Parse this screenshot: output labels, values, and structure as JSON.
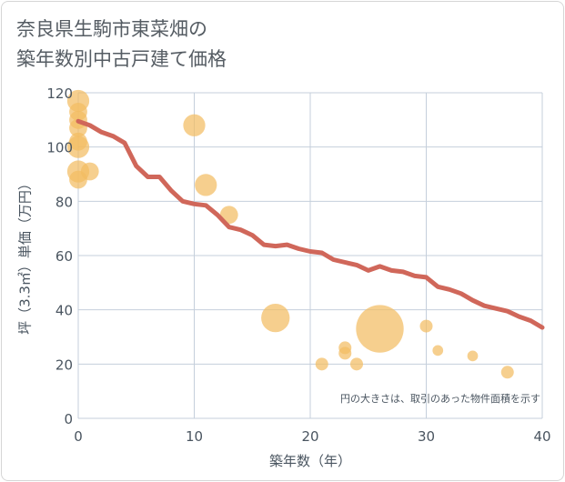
{
  "title_line1": "奈良県生駒市東菜畑の",
  "title_line2": "築年数別中古戸建て価格",
  "chart_data": {
    "type": "scatter",
    "title": "奈良県生駒市東菜畑の築年数別中古戸建て価格",
    "xlabel": "築年数（年）",
    "ylabel": "坪（3.3㎡）単価（万円）",
    "xlim": [
      0,
      40
    ],
    "ylim": [
      0,
      120
    ],
    "xticks": [
      0,
      10,
      20,
      30,
      40
    ],
    "yticks": [
      0,
      20,
      40,
      60,
      80,
      100,
      120
    ],
    "grid": true,
    "note": "円の大きさは、取引のあった物件面積を示す",
    "colors": {
      "points": "#f2bc63",
      "trend": "#d0675a",
      "grid": "#c5cfdb"
    },
    "points": [
      {
        "x": 0,
        "y": 117,
        "size": 3
      },
      {
        "x": 0,
        "y": 113,
        "size": 2
      },
      {
        "x": 0,
        "y": 110,
        "size": 2
      },
      {
        "x": 0,
        "y": 107,
        "size": 2
      },
      {
        "x": 0,
        "y": 102,
        "size": 2
      },
      {
        "x": 0,
        "y": 100,
        "size": 3
      },
      {
        "x": 0,
        "y": 91,
        "size": 3
      },
      {
        "x": 0,
        "y": 88,
        "size": 2
      },
      {
        "x": 1,
        "y": 91,
        "size": 2
      },
      {
        "x": 10,
        "y": 108,
        "size": 3
      },
      {
        "x": 11,
        "y": 86,
        "size": 3
      },
      {
        "x": 13,
        "y": 75,
        "size": 2
      },
      {
        "x": 17,
        "y": 37,
        "size": 5
      },
      {
        "x": 21,
        "y": 20,
        "size": 1
      },
      {
        "x": 23,
        "y": 26,
        "size": 1
      },
      {
        "x": 23,
        "y": 24,
        "size": 1
      },
      {
        "x": 24,
        "y": 20,
        "size": 1
      },
      {
        "x": 26,
        "y": 33,
        "size": 14
      },
      {
        "x": 30,
        "y": 34,
        "size": 1
      },
      {
        "x": 31,
        "y": 25,
        "size": 0.7
      },
      {
        "x": 34,
        "y": 23,
        "size": 0.7
      },
      {
        "x": 37,
        "y": 17,
        "size": 1
      }
    ],
    "trend": {
      "x": [
        0,
        1,
        2,
        3,
        4,
        5,
        6,
        7,
        8,
        9,
        10,
        11,
        12,
        13,
        14,
        15,
        16,
        17,
        18,
        19,
        20,
        21,
        22,
        23,
        24,
        25,
        26,
        27,
        28,
        29,
        30,
        31,
        32,
        33,
        34,
        35,
        36,
        37,
        38,
        39,
        40
      ],
      "y": [
        109.5,
        108,
        105.5,
        104,
        101.5,
        93,
        89,
        89,
        84,
        80,
        79,
        78.5,
        75,
        70.5,
        69.5,
        67.5,
        64,
        63.5,
        64,
        62.5,
        61.5,
        61,
        58.5,
        57.5,
        56.5,
        54.5,
        56,
        54.5,
        54,
        52.5,
        52,
        48.5,
        47.5,
        46,
        43.5,
        41.5,
        40.5,
        39.5,
        37.5,
        36,
        33.5
      ]
    }
  }
}
